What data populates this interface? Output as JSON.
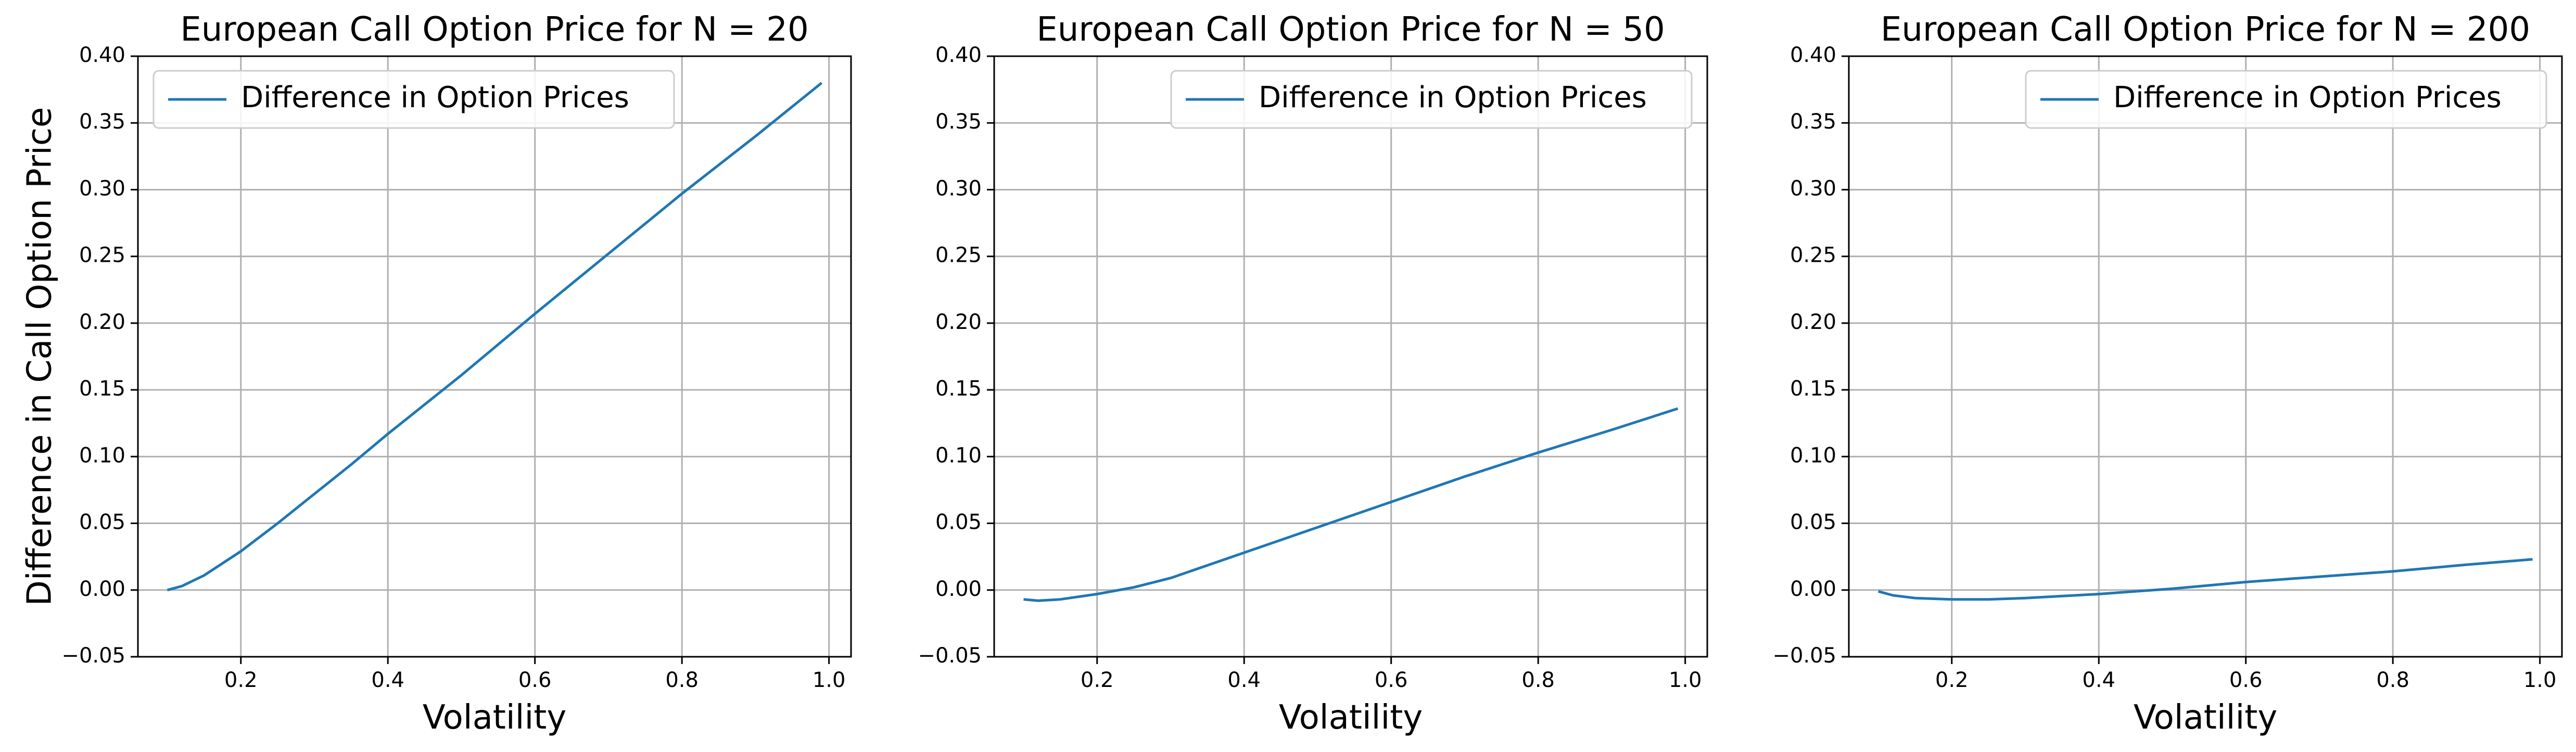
{
  "figure": {
    "ylabel": "Difference in Call Option Price"
  },
  "chart_data": [
    {
      "type": "line",
      "title": "European Call Option Price for N = 20",
      "xlabel": "Volatility",
      "ylabel": "Difference in Call Option Price",
      "xlim": [
        0.06,
        1.03
      ],
      "ylim": [
        -0.05,
        0.4
      ],
      "x_ticks": [
        "0.2",
        "0.4",
        "0.6",
        "0.8",
        "1.0"
      ],
      "y_ticks": [
        "−0.05",
        "0.00",
        "0.05",
        "0.10",
        "0.15",
        "0.20",
        "0.25",
        "0.30",
        "0.35",
        "0.40"
      ],
      "grid": true,
      "legend": {
        "placement": "upper left",
        "entries": [
          "Difference in Option Prices"
        ]
      },
      "series": [
        {
          "name": "Difference in Option Prices",
          "color": "#1f77b4",
          "x": [
            0.1,
            0.12,
            0.15,
            0.2,
            0.25,
            0.3,
            0.35,
            0.4,
            0.45,
            0.5,
            0.6,
            0.7,
            0.8,
            0.9,
            0.99
          ],
          "y": [
            0.0,
            0.003,
            0.011,
            0.029,
            0.05,
            0.072,
            0.094,
            0.117,
            0.139,
            0.161,
            0.207,
            0.252,
            0.297,
            0.34,
            0.38
          ]
        }
      ]
    },
    {
      "type": "line",
      "title": "European Call Option Price for N = 50",
      "xlabel": "Volatility",
      "ylabel": "",
      "xlim": [
        0.06,
        1.03
      ],
      "ylim": [
        -0.05,
        0.4
      ],
      "x_ticks": [
        "0.2",
        "0.4",
        "0.6",
        "0.8",
        "1.0"
      ],
      "y_ticks": [
        "−0.05",
        "0.00",
        "0.05",
        "0.10",
        "0.15",
        "0.20",
        "0.25",
        "0.30",
        "0.35",
        "0.40"
      ],
      "grid": true,
      "legend": {
        "placement": "upper right",
        "entries": [
          "Difference in Option Prices"
        ]
      },
      "series": [
        {
          "name": "Difference in Option Prices",
          "color": "#1f77b4",
          "x": [
            0.1,
            0.12,
            0.15,
            0.2,
            0.25,
            0.3,
            0.4,
            0.5,
            0.6,
            0.7,
            0.8,
            0.9,
            0.99
          ],
          "y": [
            -0.007,
            -0.008,
            -0.007,
            -0.003,
            0.002,
            0.009,
            0.028,
            0.047,
            0.066,
            0.085,
            0.103,
            0.12,
            0.136
          ]
        }
      ]
    },
    {
      "type": "line",
      "title": "European Call Option Price for N = 200",
      "xlabel": "Volatility",
      "ylabel": "",
      "xlim": [
        0.06,
        1.03
      ],
      "ylim": [
        -0.05,
        0.4
      ],
      "x_ticks": [
        "0.2",
        "0.4",
        "0.6",
        "0.8",
        "1.0"
      ],
      "y_ticks": [
        "−0.05",
        "0.00",
        "0.05",
        "0.10",
        "0.15",
        "0.20",
        "0.25",
        "0.30",
        "0.35",
        "0.40"
      ],
      "grid": true,
      "legend": {
        "placement": "upper right",
        "entries": [
          "Difference in Option Prices"
        ]
      },
      "series": [
        {
          "name": "Difference in Option Prices",
          "color": "#1f77b4",
          "x": [
            0.1,
            0.12,
            0.15,
            0.2,
            0.25,
            0.3,
            0.4,
            0.5,
            0.6,
            0.7,
            0.8,
            0.9,
            0.99
          ],
          "y": [
            -0.001,
            -0.004,
            -0.006,
            -0.007,
            -0.007,
            -0.006,
            -0.003,
            0.001,
            0.006,
            0.01,
            0.014,
            0.019,
            0.023
          ]
        }
      ]
    }
  ]
}
